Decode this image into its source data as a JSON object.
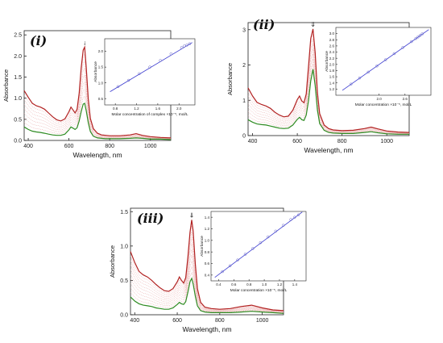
{
  "colors": {
    "initial": "#b22222",
    "intermediate": "#e8a0a0",
    "final": "#2e8b22",
    "fit": "#3a3ad0",
    "marker": "#7070c8",
    "axis": "#222222"
  },
  "chart_data": [
    {
      "type": "line",
      "panel_label": "(i)",
      "xlabel": "Wavelength, nm",
      "ylabel": "Absorbance",
      "xlim": [
        380,
        1100
      ],
      "ylim": [
        0,
        2.6
      ],
      "xticks": [
        400,
        600,
        800,
        1000
      ],
      "yticks": [
        0.0,
        0.5,
        1.0,
        1.5,
        2.0,
        2.5
      ],
      "ytick_labels": [
        "0.0",
        "0.5",
        "1.0",
        "1.5",
        "2.0",
        "2.5"
      ],
      "peak_marker": "↓",
      "peak_marker_x": 677,
      "n_intermediate": 7,
      "series": [
        {
          "role": "initial",
          "x": [
            380,
            400,
            420,
            440,
            460,
            480,
            500,
            520,
            540,
            560,
            580,
            600,
            610,
            620,
            630,
            640,
            650,
            660,
            670,
            677,
            685,
            695,
            705,
            720,
            740,
            760,
            780,
            800,
            850,
            900,
            930,
            960,
            1000,
            1050,
            1100
          ],
          "y": [
            1.18,
            1.02,
            0.88,
            0.82,
            0.79,
            0.74,
            0.65,
            0.56,
            0.49,
            0.46,
            0.51,
            0.68,
            0.79,
            0.72,
            0.65,
            0.74,
            1.12,
            1.72,
            2.14,
            2.21,
            1.72,
            0.98,
            0.52,
            0.28,
            0.17,
            0.13,
            0.12,
            0.11,
            0.11,
            0.13,
            0.16,
            0.12,
            0.09,
            0.07,
            0.06
          ]
        },
        {
          "role": "final",
          "x": [
            380,
            400,
            420,
            440,
            460,
            480,
            500,
            520,
            540,
            560,
            580,
            600,
            610,
            620,
            630,
            640,
            650,
            660,
            670,
            677,
            685,
            695,
            705,
            720,
            740,
            760,
            780,
            800,
            850,
            900,
            930,
            960,
            1000,
            1050,
            1100
          ],
          "y": [
            0.32,
            0.26,
            0.22,
            0.2,
            0.19,
            0.17,
            0.15,
            0.13,
            0.12,
            0.12,
            0.15,
            0.25,
            0.32,
            0.29,
            0.26,
            0.3,
            0.46,
            0.68,
            0.86,
            0.88,
            0.7,
            0.42,
            0.21,
            0.1,
            0.06,
            0.05,
            0.04,
            0.04,
            0.04,
            0.05,
            0.06,
            0.05,
            0.03,
            0.03,
            0.02
          ]
        }
      ],
      "inset": {
        "xlabel": "Molar concentration of complex ×10⁻⁵, mol/L",
        "ylabel": "Absorbance",
        "xlim": [
          0.6,
          2.3
        ],
        "ylim": [
          0.3,
          2.4
        ],
        "xticks": [
          0.8,
          1.2,
          1.6,
          2.0
        ],
        "xtick_labels": [
          "0.8",
          "1.2",
          "1.6",
          "2.0"
        ],
        "yticks": [
          0.5,
          1.0,
          1.5,
          2.0
        ],
        "ytick_labels": [
          "0.5",
          "1.0",
          "1.5",
          "2.0"
        ],
        "points": {
          "x": [
            0.85,
            1.05,
            1.25,
            1.45,
            1.65,
            1.85,
            2.05,
            2.1,
            2.15,
            2.2
          ],
          "y": [
            0.88,
            1.08,
            1.29,
            1.5,
            1.71,
            1.92,
            2.12,
            2.17,
            2.2,
            2.24
          ]
        },
        "fit": {
          "x": [
            0.7,
            2.25
          ],
          "y": [
            0.72,
            2.28
          ]
        }
      }
    },
    {
      "type": "line",
      "panel_label": "(ii)",
      "xlabel": "Wavelength, nm",
      "ylabel": "Absorbance",
      "xlim": [
        380,
        1100
      ],
      "ylim": [
        0,
        3.2
      ],
      "xticks": [
        400,
        600,
        800,
        1000
      ],
      "yticks": [
        0,
        1,
        2,
        3
      ],
      "ytick_labels": [
        "0",
        "1",
        "2",
        "3"
      ],
      "peak_marker": "⇓",
      "peak_marker_x": 670,
      "n_intermediate": 7,
      "series": [
        {
          "role": "initial",
          "x": [
            380,
            400,
            420,
            440,
            460,
            480,
            500,
            520,
            540,
            560,
            580,
            600,
            610,
            620,
            630,
            640,
            650,
            660,
            670,
            680,
            690,
            700,
            720,
            740,
            760,
            800,
            850,
            900,
            930,
            960,
            1000,
            1050,
            1100
          ],
          "y": [
            1.35,
            1.12,
            0.94,
            0.88,
            0.84,
            0.77,
            0.66,
            0.58,
            0.53,
            0.55,
            0.72,
            1.02,
            1.12,
            0.98,
            0.93,
            1.18,
            1.95,
            2.75,
            3.02,
            2.35,
            1.22,
            0.62,
            0.3,
            0.2,
            0.16,
            0.14,
            0.15,
            0.2,
            0.24,
            0.19,
            0.13,
            0.1,
            0.09
          ]
        },
        {
          "role": "final",
          "x": [
            380,
            400,
            420,
            440,
            460,
            480,
            500,
            520,
            540,
            560,
            580,
            600,
            610,
            620,
            630,
            640,
            650,
            660,
            670,
            680,
            690,
            700,
            720,
            740,
            760,
            800,
            850,
            900,
            930,
            960,
            1000,
            1050,
            1100
          ],
          "y": [
            0.45,
            0.38,
            0.33,
            0.31,
            0.3,
            0.27,
            0.24,
            0.21,
            0.2,
            0.21,
            0.3,
            0.46,
            0.52,
            0.45,
            0.43,
            0.58,
            0.98,
            1.55,
            1.88,
            1.42,
            0.72,
            0.34,
            0.15,
            0.09,
            0.07,
            0.06,
            0.06,
            0.09,
            0.11,
            0.08,
            0.05,
            0.04,
            0.04
          ]
        }
      ],
      "inset": {
        "xlabel": "Molar concentration ×10⁻⁵, mol/L",
        "ylabel": "Absorbance",
        "xlim": [
          1.0,
          3.2
        ],
        "ylim": [
          1.0,
          3.2
        ],
        "xticks": [
          2.0,
          2.6
        ],
        "xtick_labels": [
          "2.0",
          "2.6"
        ],
        "yticks": [
          1.2,
          1.4,
          1.6,
          1.8,
          2.0,
          2.2,
          2.4,
          2.6,
          2.8,
          3.0
        ],
        "ytick_labels": [
          "1.2",
          "1.4",
          "1.6",
          "1.8",
          "2.0",
          "2.2",
          "2.4",
          "2.6",
          "2.8",
          "3.0"
        ],
        "points": {
          "x": [
            1.35,
            1.55,
            1.75,
            1.95,
            2.15,
            2.35,
            2.55,
            2.75,
            2.85,
            2.9,
            2.95,
            3.0
          ],
          "y": [
            1.36,
            1.56,
            1.75,
            1.95,
            2.15,
            2.35,
            2.55,
            2.74,
            2.84,
            2.89,
            2.94,
            2.99
          ]
        },
        "fit": {
          "x": [
            1.15,
            3.15
          ],
          "y": [
            1.16,
            3.13
          ]
        }
      }
    },
    {
      "type": "line",
      "panel_label": "(iii)",
      "xlabel": "Wavelength, nm",
      "ylabel": "Absorbance",
      "xlim": [
        380,
        1100
      ],
      "ylim": [
        0,
        1.55
      ],
      "xticks": [
        400,
        600,
        800,
        1000
      ],
      "yticks": [
        0.0,
        0.5,
        1.0,
        1.5
      ],
      "ytick_labels": [
        "0.0",
        "0.5",
        "1.0",
        "1.5"
      ],
      "peak_marker": "⇓",
      "peak_marker_x": 668,
      "n_intermediate": 9,
      "series": [
        {
          "role": "initial",
          "x": [
            380,
            400,
            420,
            440,
            460,
            480,
            500,
            520,
            540,
            560,
            580,
            600,
            610,
            620,
            630,
            640,
            650,
            660,
            668,
            675,
            685,
            695,
            710,
            730,
            760,
            800,
            850,
            900,
            950,
            1000,
            1050,
            1100
          ],
          "y": [
            0.92,
            0.76,
            0.63,
            0.58,
            0.55,
            0.5,
            0.44,
            0.39,
            0.35,
            0.34,
            0.38,
            0.48,
            0.55,
            0.5,
            0.46,
            0.54,
            0.84,
            1.2,
            1.38,
            1.22,
            0.74,
            0.38,
            0.18,
            0.11,
            0.09,
            0.08,
            0.09,
            0.12,
            0.14,
            0.1,
            0.07,
            0.06
          ]
        },
        {
          "role": "final",
          "x": [
            380,
            400,
            420,
            440,
            460,
            480,
            500,
            520,
            540,
            560,
            580,
            600,
            610,
            620,
            630,
            640,
            650,
            660,
            668,
            675,
            685,
            695,
            710,
            730,
            760,
            800,
            850,
            900,
            950,
            1000,
            1050,
            1100
          ],
          "y": [
            0.26,
            0.2,
            0.16,
            0.14,
            0.13,
            0.12,
            0.1,
            0.09,
            0.08,
            0.08,
            0.1,
            0.15,
            0.18,
            0.16,
            0.15,
            0.19,
            0.33,
            0.48,
            0.53,
            0.45,
            0.27,
            0.13,
            0.06,
            0.04,
            0.03,
            0.03,
            0.03,
            0.04,
            0.05,
            0.04,
            0.03,
            0.02
          ]
        }
      ],
      "inset": {
        "xlabel": "Molar concentration ×10⁻⁵, mol/L",
        "ylabel": "Absorbance",
        "xlim": [
          0.3,
          1.55
        ],
        "ylim": [
          0.3,
          1.5
        ],
        "xticks": [
          0.4,
          0.6,
          0.8,
          1.0,
          1.2,
          1.4
        ],
        "xtick_labels": [
          "0.4",
          "0.6",
          "0.8",
          "1.0",
          "1.2",
          "1.4"
        ],
        "yticks": [
          0.4,
          0.6,
          0.8,
          1.0,
          1.2,
          1.4
        ],
        "ytick_labels": [
          "0.4",
          "0.6",
          "0.8",
          "1.0",
          "1.2",
          "1.4"
        ],
        "points": {
          "x": [
            0.45,
            0.55,
            0.65,
            0.75,
            0.85,
            0.95,
            1.05,
            1.15,
            1.25,
            1.35,
            1.4,
            1.45
          ],
          "y": [
            0.46,
            0.56,
            0.66,
            0.76,
            0.86,
            0.96,
            1.06,
            1.16,
            1.26,
            1.36,
            1.4,
            1.44
          ]
        },
        "fit": {
          "x": [
            0.35,
            1.5
          ],
          "y": [
            0.36,
            1.49
          ]
        }
      }
    }
  ]
}
